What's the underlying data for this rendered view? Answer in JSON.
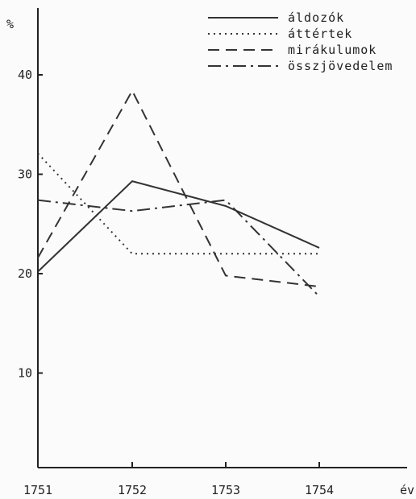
{
  "chart_data": {
    "type": "line",
    "title": "",
    "ylabel": "%",
    "xlabel": "év",
    "x": [
      "1751",
      "1752",
      "1753",
      "1754"
    ],
    "ylim": [
      0,
      47
    ],
    "yticks": [
      10,
      20,
      30,
      40
    ],
    "grid": false,
    "legend_position": "top-right",
    "series": [
      {
        "name": "áldozók",
        "style": "solid",
        "values": [
          20.2,
          29.3,
          26.8,
          22.6
        ]
      },
      {
        "name": "áttértek",
        "style": "dotted",
        "values": [
          32.1,
          22.0,
          22.0,
          22.0
        ]
      },
      {
        "name": "mirákulumok",
        "style": "dashed",
        "values": [
          21.6,
          38.4,
          19.8,
          18.7
        ]
      },
      {
        "name": "összjövedelem",
        "style": "dashdot",
        "values": [
          27.4,
          26.3,
          27.4,
          17.7
        ]
      }
    ],
    "colors": {
      "line": "#333333",
      "background": "#fbfbfb"
    }
  }
}
